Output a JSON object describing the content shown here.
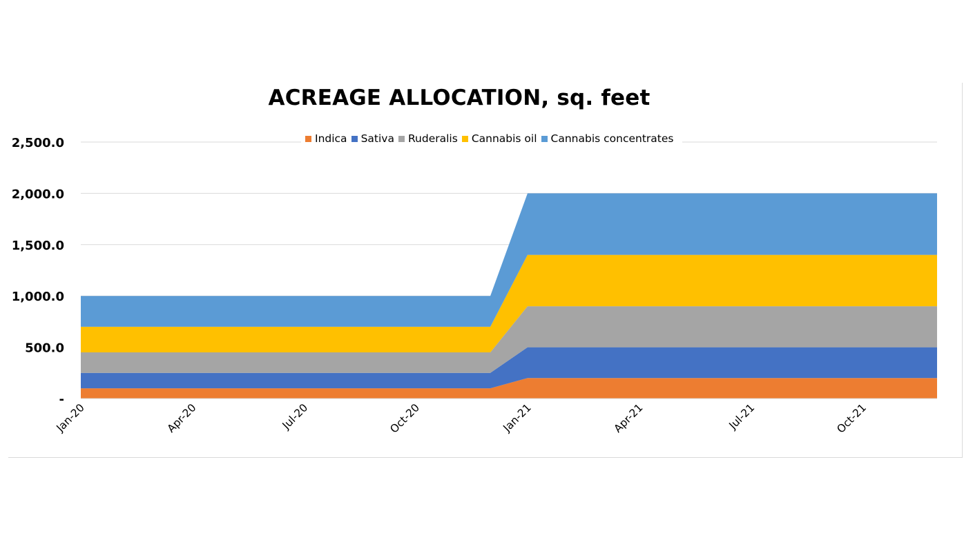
{
  "chart_data": {
    "type": "area",
    "stacked": true,
    "title": "ACREAGE ALLOCATION,  sq. feet",
    "xlabel": "",
    "ylabel": "",
    "ylim": [
      0,
      2500
    ],
    "y_ticks": [
      0,
      500,
      1000,
      1500,
      2000,
      2500
    ],
    "y_tick_labels": [
      "-",
      "500.0",
      "1,000.0",
      "1,500.0",
      "2,000.0",
      "2,500.0"
    ],
    "x_tick_labels": [
      "Jan-20",
      "Apr-20",
      "Jul-20",
      "Oct-20",
      "Jan-21",
      "Apr-21",
      "Jul-21",
      "Oct-21"
    ],
    "x_tick_indices": [
      0,
      3,
      6,
      9,
      12,
      15,
      18,
      21
    ],
    "categories": [
      "Jan-20",
      "Feb-20",
      "Mar-20",
      "Apr-20",
      "May-20",
      "Jun-20",
      "Jul-20",
      "Aug-20",
      "Sep-20",
      "Oct-20",
      "Nov-20",
      "Dec-20",
      "Jan-21",
      "Feb-21",
      "Mar-21",
      "Apr-21",
      "May-21",
      "Jun-21",
      "Jul-21",
      "Aug-21",
      "Sep-21",
      "Oct-21",
      "Nov-21",
      "Dec-21"
    ],
    "grid": true,
    "legend_position": "top",
    "series": [
      {
        "name": "Indica",
        "color": "#ED7D31",
        "values": [
          100,
          100,
          100,
          100,
          100,
          100,
          100,
          100,
          100,
          100,
          100,
          100,
          200,
          200,
          200,
          200,
          200,
          200,
          200,
          200,
          200,
          200,
          200,
          200
        ]
      },
      {
        "name": "Sativa",
        "color": "#4472C4",
        "values": [
          150,
          150,
          150,
          150,
          150,
          150,
          150,
          150,
          150,
          150,
          150,
          150,
          300,
          300,
          300,
          300,
          300,
          300,
          300,
          300,
          300,
          300,
          300,
          300
        ]
      },
      {
        "name": "Ruderalis",
        "color": "#A5A5A5",
        "values": [
          200,
          200,
          200,
          200,
          200,
          200,
          200,
          200,
          200,
          200,
          200,
          200,
          400,
          400,
          400,
          400,
          400,
          400,
          400,
          400,
          400,
          400,
          400,
          400
        ]
      },
      {
        "name": "Cannabis oil",
        "color": "#FFC000",
        "values": [
          250,
          250,
          250,
          250,
          250,
          250,
          250,
          250,
          250,
          250,
          250,
          250,
          500,
          500,
          500,
          500,
          500,
          500,
          500,
          500,
          500,
          500,
          500,
          500
        ]
      },
      {
        "name": "Cannabis concentrates",
        "color": "#5B9BD5",
        "values": [
          300,
          300,
          300,
          300,
          300,
          300,
          300,
          300,
          300,
          300,
          300,
          300,
          600,
          600,
          600,
          600,
          600,
          600,
          600,
          600,
          600,
          600,
          600,
          600
        ]
      }
    ]
  }
}
